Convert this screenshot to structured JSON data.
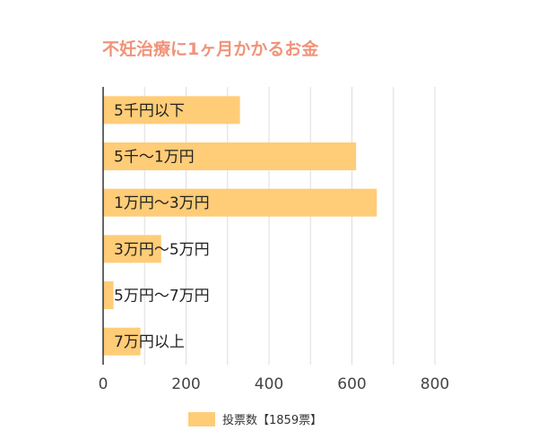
{
  "chart_data": {
    "type": "bar",
    "orientation": "horizontal",
    "title": "不妊治療に1ヶ月かかるお金",
    "categories": [
      "5千円以下",
      "5千～1万円",
      "1万円～3万円",
      "3万円～5万円",
      "5万円～7万円",
      "7万円以上"
    ],
    "series": [
      {
        "name": "投票数【1859票】",
        "values": [
          330,
          610,
          660,
          140,
          25,
          90
        ]
      }
    ],
    "xlim": [
      0,
      800
    ],
    "xticks": [
      0,
      200,
      400,
      600,
      800
    ],
    "grid": true,
    "legend_position": "bottom",
    "colors": {
      "bar": "#ffcc77",
      "title": "#f0937a",
      "grid": "#dddddd",
      "axis": "#333333",
      "text": "#222222"
    }
  }
}
